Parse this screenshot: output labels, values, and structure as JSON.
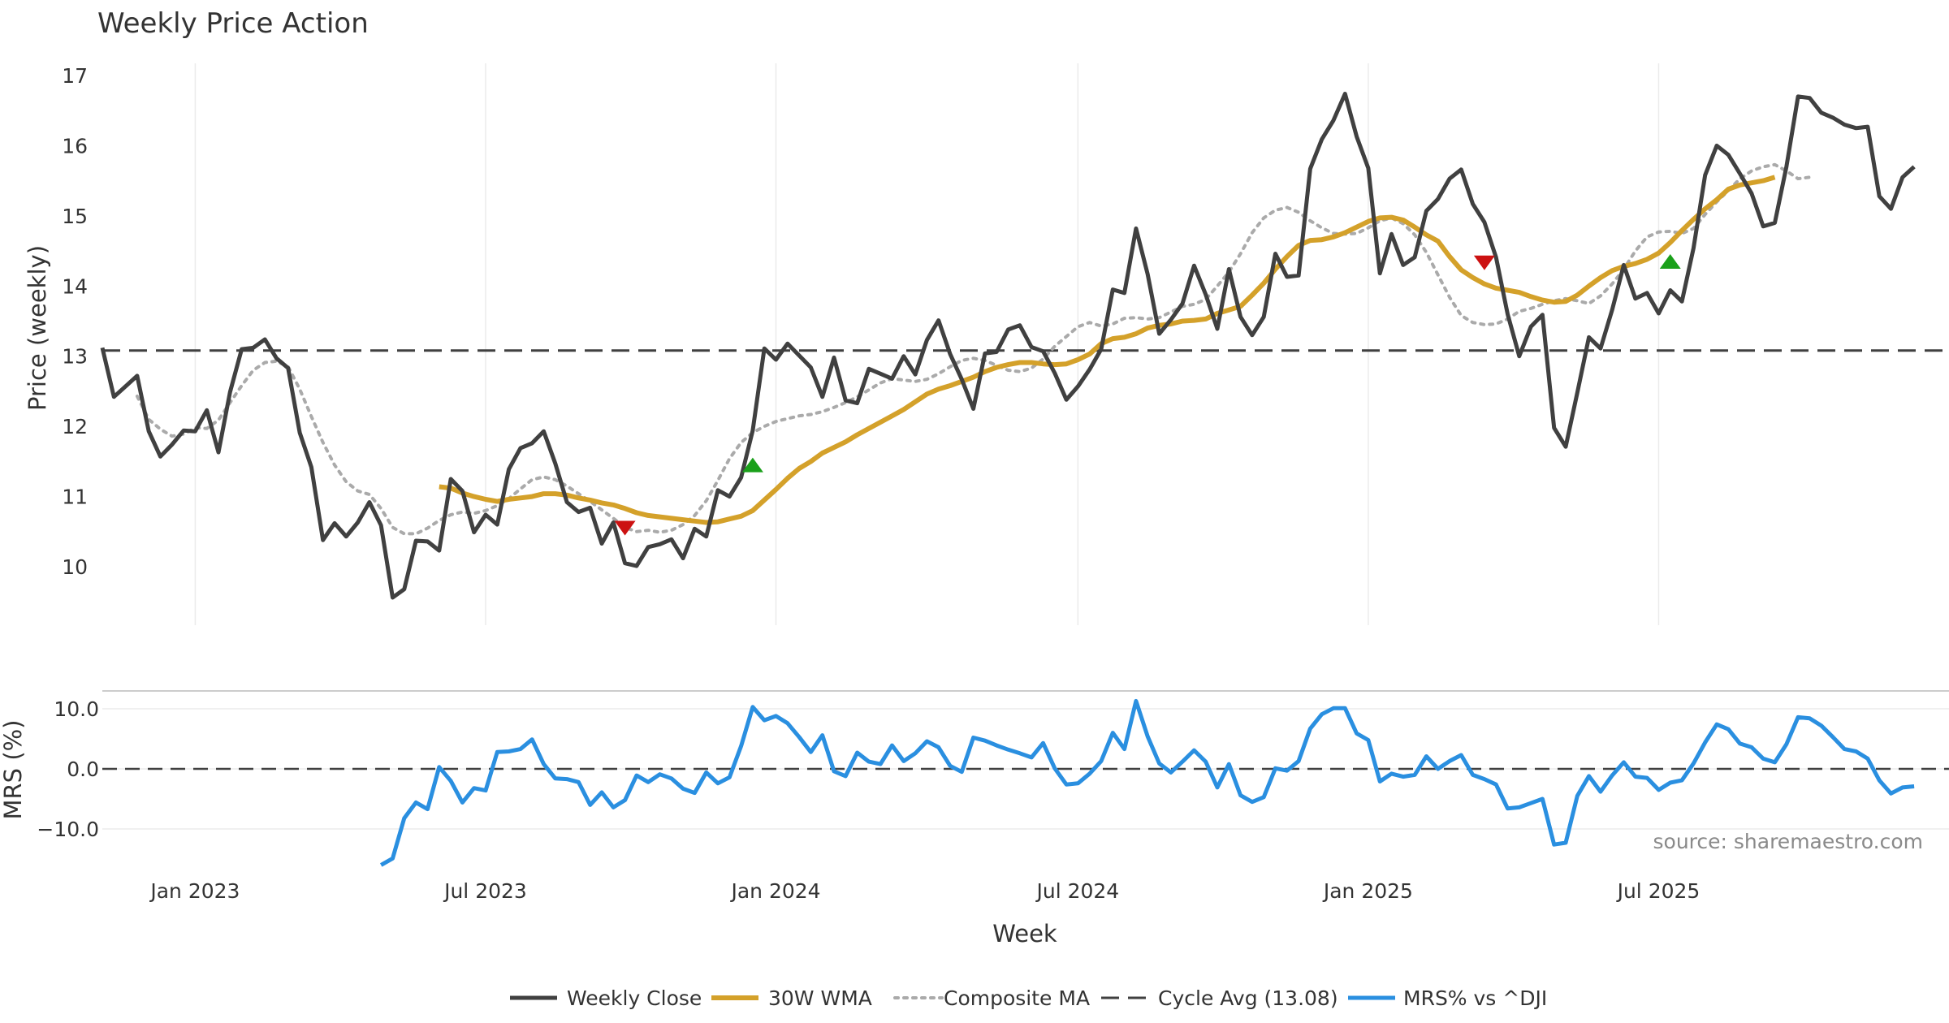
{
  "chart_data": {
    "type": "line",
    "title": "Weekly Price Action",
    "source_note": "source: sharemaestro.com",
    "xlabel": "Week",
    "x_ticks": [
      "Jan 2023",
      "Jul 2023",
      "Jan 2024",
      "Jul 2024",
      "Jan 2025",
      "Jul 2025"
    ],
    "grid": true,
    "legend_position": "bottom-center",
    "colors": {
      "weekly_close": "#404040",
      "wma": "#d4a12a",
      "composite": "#aaaaaa",
      "cycle": "#404040",
      "mrs": "#2a8fe0",
      "signal_buy": "#1aa01a",
      "signal_sell": "#cc1111"
    },
    "price_panel": {
      "ylabel": "Price (weekly)",
      "ylim": [
        9.2,
        17.1
      ],
      "yticks": [
        "10",
        "11",
        "12",
        "13",
        "14",
        "15",
        "16",
        "17"
      ],
      "cycle_avg": 13.08
    },
    "mrs_panel": {
      "ylabel": "MRS (%)",
      "ylim": [
        -16.5,
        13.0
      ],
      "yticks": [
        "10.0",
        "0.0",
        "−10.0"
      ]
    },
    "legend": [
      "Weekly Close",
      "30W WMA",
      "Composite MA",
      "Cycle Avg (13.08)",
      "MRS% vs ^DJI"
    ],
    "x_start_week": 0,
    "x_end_week": 159,
    "series": [
      {
        "name": "Weekly Close",
        "start_week": 0,
        "values": [
          13.12,
          12.42,
          12.57,
          12.72,
          11.93,
          11.57,
          11.74,
          11.94,
          11.93,
          12.23,
          11.63,
          12.49,
          13.1,
          13.12,
          13.24,
          12.97,
          12.83,
          11.91,
          11.42,
          10.38,
          10.62,
          10.43,
          10.63,
          10.92,
          10.59,
          9.56,
          9.68,
          10.37,
          10.36,
          10.23,
          11.25,
          11.08,
          10.49,
          10.74,
          10.6,
          11.39,
          11.69,
          11.76,
          11.93,
          11.47,
          10.92,
          10.78,
          10.84,
          10.33,
          10.63,
          10.05,
          10.01,
          10.28,
          10.32,
          10.39,
          10.12,
          10.54,
          10.43,
          11.09,
          11.0,
          11.27,
          11.94,
          13.11,
          12.95,
          13.18,
          13.01,
          12.84,
          12.42,
          12.98,
          12.37,
          12.33,
          12.82,
          12.75,
          12.68,
          13.0,
          12.74,
          13.23,
          13.51,
          13.03,
          12.67,
          12.25,
          13.04,
          13.06,
          13.38,
          13.44,
          13.13,
          13.07,
          12.76,
          12.38,
          12.57,
          12.81,
          13.1,
          13.95,
          13.9,
          14.82,
          14.17,
          13.32,
          13.52,
          13.75,
          14.29,
          13.88,
          13.39,
          14.24,
          13.56,
          13.3,
          13.56,
          14.46,
          14.13,
          14.15,
          15.67,
          16.09,
          16.36,
          16.74,
          16.13,
          15.68,
          14.18,
          14.74,
          14.3,
          14.41,
          15.07,
          15.24,
          15.53,
          15.66,
          15.17,
          14.91,
          14.41,
          13.6,
          13.0,
          13.42,
          13.59,
          11.98,
          11.71,
          12.48,
          13.27,
          13.11,
          13.66,
          14.3,
          13.82,
          13.9,
          13.61,
          13.94,
          13.78,
          14.54,
          15.58,
          16.0,
          15.87,
          15.6,
          15.32,
          14.85,
          14.9,
          15.7,
          16.7,
          16.68,
          16.47,
          16.4,
          16.3,
          16.25,
          16.27,
          15.28,
          15.1,
          15.55,
          15.7
        ]
      },
      {
        "name": "30W WMA",
        "start_week": 29,
        "values": [
          11.14,
          11.12,
          11.05,
          11.0,
          10.96,
          10.93,
          10.96,
          10.98,
          11.0,
          11.04,
          11.04,
          11.02,
          10.98,
          10.95,
          10.91,
          10.88,
          10.83,
          10.77,
          10.73,
          10.71,
          10.69,
          10.67,
          10.65,
          10.63,
          10.64,
          10.68,
          10.72,
          10.8,
          10.95,
          11.1,
          11.26,
          11.4,
          11.5,
          11.62,
          11.7,
          11.78,
          11.88,
          11.97,
          12.06,
          12.15,
          12.24,
          12.35,
          12.46,
          12.53,
          12.58,
          12.64,
          12.7,
          12.78,
          12.84,
          12.88,
          12.91,
          12.91,
          12.89,
          12.88,
          12.89,
          12.95,
          13.03,
          13.18,
          13.25,
          13.27,
          13.32,
          13.4,
          13.44,
          13.46,
          13.5,
          13.51,
          13.53,
          13.61,
          13.66,
          13.71,
          13.87,
          14.04,
          14.24,
          14.42,
          14.58,
          14.65,
          14.66,
          14.7,
          14.76,
          14.84,
          14.92,
          14.97,
          14.98,
          14.94,
          14.84,
          14.73,
          14.64,
          14.42,
          14.23,
          14.12,
          14.03,
          13.97,
          13.94,
          13.91,
          13.85,
          13.8,
          13.77,
          13.78,
          13.87,
          14.0,
          14.12,
          14.22,
          14.28,
          14.32,
          14.38,
          14.47,
          14.62,
          14.79,
          14.95,
          15.1,
          15.23,
          15.38,
          15.44,
          15.47,
          15.5,
          15.55
        ]
      },
      {
        "name": "Composite MA",
        "start_week": 3,
        "values": [
          12.43,
          12.1,
          11.96,
          11.86,
          11.89,
          11.98,
          11.97,
          12.09,
          12.34,
          12.58,
          12.8,
          12.91,
          12.93,
          12.85,
          12.53,
          12.14,
          11.77,
          11.45,
          11.21,
          11.08,
          11.03,
          10.83,
          10.56,
          10.47,
          10.47,
          10.55,
          10.66,
          10.74,
          10.78,
          10.76,
          10.8,
          10.87,
          10.97,
          11.11,
          11.24,
          11.28,
          11.24,
          11.15,
          11.04,
          10.93,
          10.81,
          10.69,
          10.56,
          10.5,
          10.52,
          10.49,
          10.52,
          10.6,
          10.73,
          10.94,
          11.23,
          11.54,
          11.77,
          11.91,
          12.0,
          12.07,
          12.11,
          12.15,
          12.17,
          12.21,
          12.27,
          12.34,
          12.42,
          12.52,
          12.62,
          12.68,
          12.66,
          12.64,
          12.67,
          12.75,
          12.85,
          12.94,
          12.97,
          12.94,
          12.87,
          12.8,
          12.78,
          12.83,
          12.96,
          13.14,
          13.28,
          13.42,
          13.48,
          13.43,
          13.46,
          13.54,
          13.55,
          13.53,
          13.55,
          13.63,
          13.71,
          13.74,
          13.81,
          14.0,
          14.2,
          14.46,
          14.76,
          14.97,
          15.08,
          15.12,
          15.05,
          14.93,
          14.83,
          14.75,
          14.74,
          14.75,
          14.83,
          14.93,
          14.97,
          14.89,
          14.73,
          14.48,
          14.16,
          13.84,
          13.58,
          13.48,
          13.45,
          13.46,
          13.53,
          13.64,
          13.68,
          13.74,
          13.79,
          13.82,
          13.79,
          13.75,
          13.86,
          14.03,
          14.24,
          14.5,
          14.7,
          14.77,
          14.78,
          14.75,
          14.82,
          15.02,
          15.2,
          15.36,
          15.53,
          15.64,
          15.7,
          15.73,
          15.64,
          15.53,
          15.55
        ]
      },
      {
        "name": "MRS% vs ^DJI",
        "start_week": 24,
        "values": [
          -16.0,
          -14.9,
          -8.2,
          -5.6,
          -6.7,
          0.3,
          -2.0,
          -5.6,
          -3.2,
          -3.6,
          2.8,
          2.9,
          3.3,
          4.9,
          0.8,
          -1.6,
          -1.7,
          -2.2,
          -6.0,
          -3.9,
          -6.4,
          -5.2,
          -1.1,
          -2.2,
          -0.9,
          -1.6,
          -3.3,
          -4.0,
          -0.6,
          -2.4,
          -1.4,
          3.8,
          10.3,
          8.1,
          8.8,
          7.6,
          5.3,
          2.8,
          5.6,
          -0.4,
          -1.2,
          2.7,
          1.2,
          0.8,
          3.9,
          1.3,
          2.6,
          4.6,
          3.6,
          0.5,
          -0.5,
          5.2,
          4.7,
          3.9,
          3.2,
          2.6,
          1.9,
          4.3,
          0.1,
          -2.6,
          -2.4,
          -0.8,
          1.3,
          6.0,
          3.3,
          11.3,
          5.4,
          0.9,
          -0.6,
          1.2,
          3.1,
          1.2,
          -3.1,
          0.8,
          -4.4,
          -5.5,
          -4.7,
          0.1,
          -0.3,
          1.3,
          6.7,
          9.1,
          10.1,
          10.1,
          5.9,
          4.8,
          -2.1,
          -0.8,
          -1.3,
          -1.0,
          2.1,
          0.0,
          1.3,
          2.3,
          -1.0,
          -1.7,
          -2.6,
          -6.6,
          -6.4,
          -5.7,
          -5.0,
          -12.6,
          -12.3,
          -4.5,
          -1.2,
          -3.8,
          -1.1,
          1.1,
          -1.3,
          -1.5,
          -3.5,
          -2.3,
          -1.9,
          0.9,
          4.4,
          7.4,
          6.6,
          4.2,
          3.6,
          1.7,
          1.1,
          4.1,
          8.6,
          8.4,
          7.2,
          5.3,
          3.3,
          2.9,
          1.7,
          -1.9,
          -4.1,
          -3.1,
          -2.9
        ]
      }
    ],
    "signals": [
      {
        "type": "sell",
        "week": 45,
        "value": 10.55
      },
      {
        "type": "buy",
        "week": 56,
        "value": 11.45
      },
      {
        "type": "sell",
        "week": 119,
        "value": 14.33
      },
      {
        "type": "buy",
        "week": 135,
        "value": 14.35
      }
    ],
    "x_tick_weeks": [
      8,
      33,
      58,
      84,
      109,
      134
    ]
  }
}
